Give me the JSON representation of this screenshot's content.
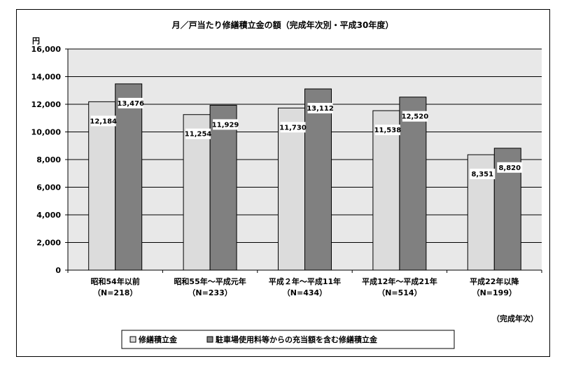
{
  "chart_data": {
    "type": "bar",
    "title": "月／戸当たり修繕積立金の額（完成年次別・平成30年度）",
    "ylabel": "円",
    "xlabel": "（完成年次）",
    "ylim": [
      0,
      16000
    ],
    "yticks": [
      0,
      2000,
      4000,
      6000,
      8000,
      10000,
      12000,
      14000,
      16000
    ],
    "ytick_labels": [
      "0",
      "2,000",
      "4,000",
      "6,000",
      "8,000",
      "10,000",
      "12,000",
      "14,000",
      "16,000"
    ],
    "grid": true,
    "legend_position": "bottom",
    "categories": [
      {
        "line1": "昭和54年以前",
        "line2": "（N=218）"
      },
      {
        "line1": "昭和55年～平成元年",
        "line2": "（N=233）"
      },
      {
        "line1": "平成２年～平成11年",
        "line2": "（N=434）"
      },
      {
        "line1": "平成12年～平成21年",
        "line2": "（N=514）"
      },
      {
        "line1": "平成22年以降",
        "line2": "（N=199）"
      }
    ],
    "series": [
      {
        "name": "修繕積立金",
        "color": "#dcdcdc",
        "values": [
          12184,
          11254,
          11730,
          11538,
          8351
        ],
        "labels": [
          "12,184",
          "11,254",
          "11,730",
          "11,538",
          "8,351"
        ]
      },
      {
        "name": "駐車場使用料等からの充当額を含む修繕積立金",
        "color": "#808080",
        "values": [
          13476,
          11929,
          13112,
          12520,
          8820
        ],
        "labels": [
          "13,476",
          "11,929",
          "13,112",
          "12,520",
          "8,820"
        ]
      }
    ],
    "plot_background": "#e8e8e8"
  }
}
